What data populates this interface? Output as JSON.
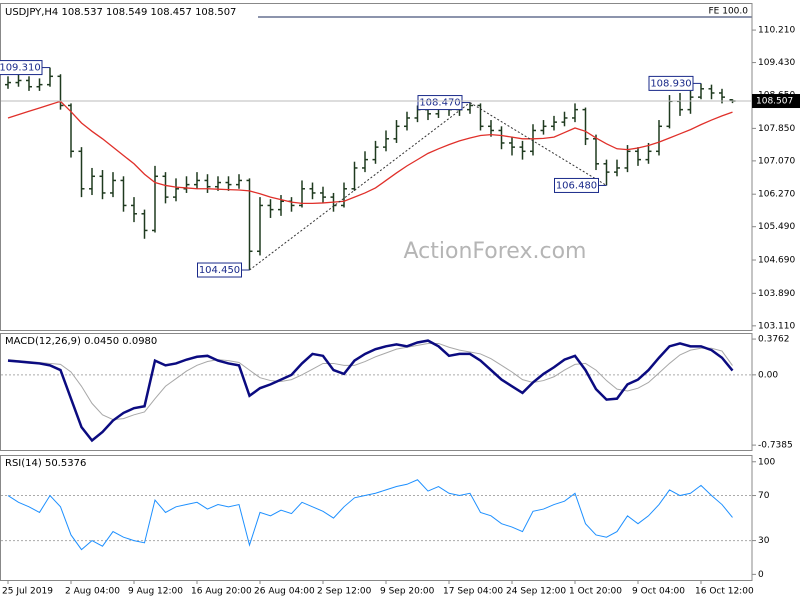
{
  "chart_data": [
    {
      "type": "ohlc",
      "title": "USDJPY,H4 108.537 108.549 108.457 108.507",
      "color": "#1f3a1f",
      "open": [
        108.9,
        108.95,
        109.0,
        108.85,
        108.9,
        109.1,
        108.4,
        107.3,
        106.4,
        106.7,
        106.3,
        106.6,
        106.0,
        105.8,
        105.4,
        106.7,
        106.2,
        106.4,
        106.5,
        106.6,
        106.45,
        106.55,
        106.5,
        106.6,
        104.9,
        106.0,
        105.9,
        106.1,
        106.0,
        106.4,
        106.3,
        106.2,
        106.0,
        106.4,
        106.9,
        107.1,
        107.4,
        107.6,
        107.9,
        108.1,
        108.3,
        108.2,
        108.35,
        108.3,
        108.3,
        108.4,
        107.9,
        107.8,
        107.5,
        107.4,
        107.3,
        107.8,
        107.9,
        108.0,
        108.1,
        108.3,
        107.6,
        107.0,
        106.8,
        106.9,
        107.3,
        107.1,
        107.3,
        107.9,
        108.5,
        108.3,
        108.6,
        108.8,
        108.7,
        108.537
      ],
      "high": [
        109.1,
        109.15,
        109.1,
        109.05,
        109.31,
        109.15,
        108.45,
        107.4,
        106.9,
        106.85,
        106.8,
        106.7,
        106.2,
        105.9,
        106.95,
        106.8,
        106.65,
        106.7,
        106.8,
        106.75,
        106.7,
        106.7,
        106.75,
        106.65,
        106.2,
        106.15,
        106.25,
        106.2,
        106.6,
        106.55,
        106.45,
        106.3,
        106.55,
        107.05,
        107.3,
        107.55,
        107.8,
        108.05,
        108.25,
        108.4,
        108.4,
        108.45,
        108.45,
        108.42,
        108.47,
        108.45,
        108.05,
        107.9,
        107.65,
        107.55,
        107.95,
        108.05,
        108.15,
        108.25,
        108.45,
        108.35,
        107.7,
        107.1,
        107.1,
        107.45,
        107.4,
        107.5,
        108.05,
        108.65,
        108.7,
        108.75,
        108.93,
        108.9,
        108.8,
        108.549
      ],
      "low": [
        108.8,
        108.85,
        108.75,
        108.75,
        108.85,
        108.3,
        107.15,
        106.2,
        106.25,
        106.15,
        106.2,
        105.85,
        105.6,
        105.2,
        105.35,
        106.05,
        106.1,
        106.3,
        106.4,
        106.3,
        106.35,
        106.35,
        106.4,
        104.45,
        104.8,
        105.7,
        105.75,
        105.85,
        105.95,
        106.15,
        106.05,
        105.85,
        105.95,
        106.35,
        106.8,
        107.0,
        107.3,
        107.5,
        107.8,
        108.0,
        108.05,
        108.1,
        108.15,
        108.15,
        108.2,
        107.8,
        107.65,
        107.35,
        107.2,
        107.1,
        107.2,
        107.7,
        107.8,
        107.9,
        108.0,
        107.45,
        106.85,
        106.48,
        106.7,
        106.8,
        106.95,
        107.0,
        107.2,
        107.85,
        108.15,
        108.2,
        108.55,
        108.55,
        108.45,
        108.457
      ],
      "close": [
        108.95,
        109.0,
        108.85,
        108.9,
        109.1,
        108.4,
        107.3,
        106.4,
        106.7,
        106.3,
        106.6,
        106.0,
        105.8,
        105.4,
        106.7,
        106.2,
        106.4,
        106.5,
        106.6,
        106.45,
        106.55,
        106.5,
        106.6,
        104.9,
        106.0,
        105.9,
        106.1,
        106.0,
        106.4,
        106.3,
        106.2,
        106.0,
        106.4,
        106.9,
        107.1,
        107.4,
        107.6,
        107.9,
        108.1,
        108.3,
        108.2,
        108.35,
        108.3,
        108.3,
        108.4,
        107.9,
        107.8,
        107.5,
        107.4,
        107.3,
        107.8,
        107.9,
        108.0,
        108.1,
        108.3,
        107.6,
        107.0,
        106.8,
        106.9,
        107.3,
        107.1,
        107.3,
        107.9,
        108.5,
        108.3,
        108.6,
        108.8,
        108.7,
        108.6,
        108.507
      ],
      "overlay": {
        "color": "#e0302a",
        "values": [
          108.1,
          108.18,
          108.26,
          108.34,
          108.42,
          108.5,
          108.25,
          107.98,
          107.78,
          107.6,
          107.4,
          107.2,
          107.0,
          106.75,
          106.55,
          106.48,
          106.44,
          106.42,
          106.4,
          106.4,
          106.39,
          106.38,
          106.37,
          106.35,
          106.28,
          106.2,
          106.14,
          106.08,
          106.05,
          106.05,
          106.06,
          106.08,
          106.1,
          106.2,
          106.3,
          106.42,
          106.6,
          106.78,
          106.95,
          107.1,
          107.25,
          107.36,
          107.46,
          107.55,
          107.62,
          107.68,
          107.7,
          107.68,
          107.64,
          107.6,
          107.6,
          107.61,
          107.64,
          107.75,
          107.86,
          107.78,
          107.62,
          107.48,
          107.36,
          107.34,
          107.38,
          107.44,
          107.52,
          107.62,
          107.72,
          107.82,
          107.94,
          108.05,
          108.15,
          108.24
        ]
      },
      "annotations": [
        {
          "index": 4,
          "value": 109.31,
          "label": "109.310"
        },
        {
          "index": 23,
          "value": 104.45,
          "label": "104.450"
        },
        {
          "index": 44,
          "value": 108.47,
          "label": "108.470"
        },
        {
          "index": 57,
          "value": 106.48,
          "label": "106.480"
        },
        {
          "index": 66,
          "value": 108.93,
          "label": "108.930"
        }
      ],
      "fe_label": "FE 100.0",
      "last_price": {
        "value": 108.507,
        "label": "108.507"
      },
      "watermark": "ActionForex.com",
      "ylim": [
        103.01,
        110.86
      ],
      "yticks": [
        {
          "value": 110.21,
          "label": "110.210"
        },
        {
          "value": 109.43,
          "label": "109.430"
        },
        {
          "value": 108.65,
          "label": "108.650"
        },
        {
          "value": 107.85,
          "label": "107.850"
        },
        {
          "value": 107.07,
          "label": "107.070"
        },
        {
          "value": 106.27,
          "label": "106.270"
        },
        {
          "value": 105.49,
          "label": "105.490"
        },
        {
          "value": 104.69,
          "label": "104.690"
        },
        {
          "value": 103.89,
          "label": "103.890"
        },
        {
          "value": 103.11,
          "label": "103.110"
        }
      ]
    },
    {
      "type": "line",
      "title": "MACD(12,26,9) 0.0450 0.0980",
      "grid": true,
      "series": [
        {
          "color": "#0b0b80",
          "values": [
            0.15,
            0.14,
            0.13,
            0.12,
            0.1,
            0.05,
            -0.25,
            -0.55,
            -0.69,
            -0.6,
            -0.48,
            -0.4,
            -0.35,
            -0.33,
            0.15,
            0.1,
            0.12,
            0.16,
            0.19,
            0.2,
            0.15,
            0.12,
            0.1,
            -0.22,
            -0.14,
            -0.1,
            -0.05,
            0.0,
            0.12,
            0.22,
            0.2,
            0.05,
            0.01,
            0.15,
            0.22,
            0.27,
            0.3,
            0.32,
            0.3,
            0.34,
            0.36,
            0.3,
            0.2,
            0.22,
            0.22,
            0.15,
            0.05,
            -0.05,
            -0.12,
            -0.19,
            -0.08,
            0.01,
            0.08,
            0.16,
            0.2,
            0.05,
            -0.15,
            -0.26,
            -0.25,
            -0.1,
            -0.05,
            0.05,
            0.18,
            0.3,
            0.33,
            0.3,
            0.3,
            0.26,
            0.18,
            0.045
          ]
        },
        {
          "color": "#a8a8a8",
          "values": [
            0.16,
            0.15,
            0.14,
            0.13,
            0.12,
            0.11,
            0.03,
            -0.12,
            -0.3,
            -0.42,
            -0.47,
            -0.46,
            -0.42,
            -0.39,
            -0.25,
            -0.12,
            -0.04,
            0.04,
            0.1,
            0.14,
            0.16,
            0.15,
            0.13,
            0.05,
            -0.03,
            -0.06,
            -0.07,
            -0.05,
            0.0,
            0.06,
            0.12,
            0.12,
            0.1,
            0.1,
            0.14,
            0.19,
            0.23,
            0.27,
            0.29,
            0.31,
            0.33,
            0.33,
            0.29,
            0.26,
            0.24,
            0.22,
            0.17,
            0.1,
            0.03,
            -0.05,
            -0.08,
            -0.06,
            -0.02,
            0.05,
            0.11,
            0.12,
            0.05,
            -0.06,
            -0.15,
            -0.17,
            -0.14,
            -0.08,
            0.02,
            0.12,
            0.21,
            0.26,
            0.28,
            0.28,
            0.25,
            0.098
          ]
        }
      ],
      "ylim": [
        -0.79,
        0.44
      ],
      "yticks": [
        0.3762,
        {
          "value": 0,
          "label": "0.00"
        },
        -0.7385
      ]
    },
    {
      "type": "line",
      "title": "RSI(14) 50.5376",
      "grid": true,
      "series": [
        {
          "color": "#1e90ff",
          "values": [
            70,
            64,
            60,
            55,
            70,
            60,
            35,
            22,
            30,
            25,
            38,
            33,
            30,
            28,
            66,
            55,
            60,
            62,
            64,
            58,
            62,
            60,
            62,
            26,
            55,
            52,
            57,
            54,
            64,
            60,
            56,
            50,
            60,
            68,
            70,
            72,
            75,
            78,
            80,
            84,
            74,
            78,
            72,
            70,
            72,
            55,
            52,
            45,
            42,
            38,
            56,
            58,
            62,
            65,
            72,
            45,
            35,
            33,
            38,
            52,
            45,
            52,
            62,
            75,
            70,
            72,
            79,
            70,
            62,
            50.5376
          ]
        }
      ],
      "ylim": [
        -5,
        106
      ],
      "yticks": [
        100,
        70,
        30,
        0
      ],
      "xticks": [
        {
          "value": 0,
          "label": "25 Jul 2019"
        },
        {
          "value": 6,
          "label": "2 Aug 04:00"
        },
        {
          "value": 12,
          "label": "9 Aug 12:00"
        },
        {
          "value": 18,
          "label": "16 Aug 20:00"
        },
        {
          "value": 24,
          "label": "26 Aug 04:00"
        },
        {
          "value": 30,
          "label": "2 Sep 12:00"
        },
        {
          "value": 36,
          "label": "9 Sep 20:00"
        },
        {
          "value": 42,
          "label": "17 Sep 04:00"
        },
        {
          "value": 48,
          "label": "24 Sep 12:00"
        },
        {
          "value": 54,
          "label": "1 Oct 20:00"
        },
        {
          "value": 60,
          "label": "9 Oct 04:00"
        },
        {
          "value": 66,
          "label": "16 Oct 12:00"
        }
      ]
    }
  ]
}
